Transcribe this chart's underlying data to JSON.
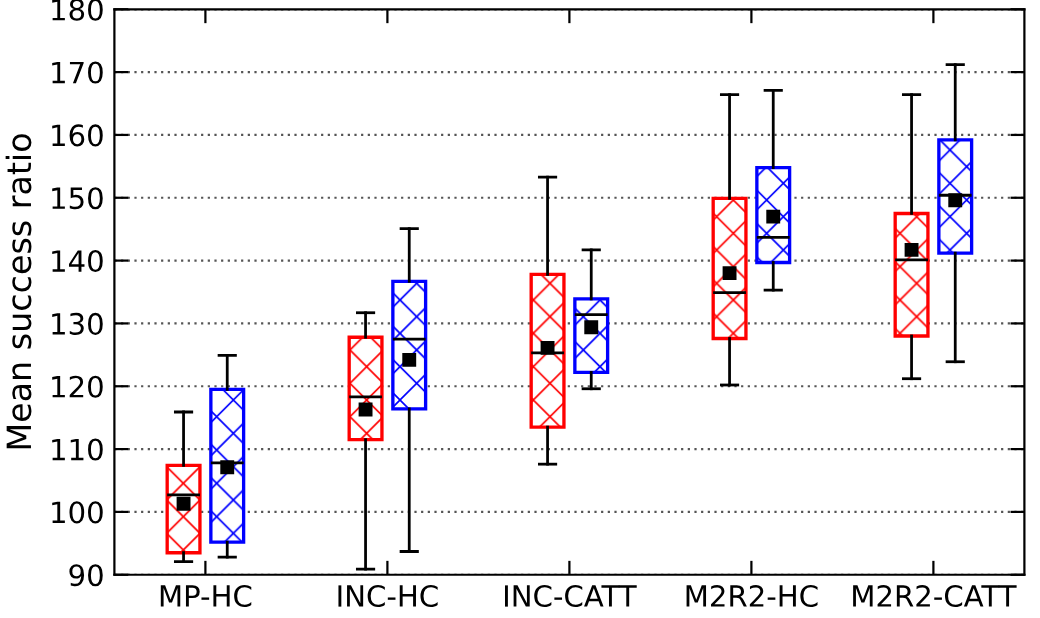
{
  "chart_data": {
    "type": "box",
    "ylabel": "Mean success ratio",
    "categories": [
      "MP-HC",
      "INC-HC",
      "INC-CATT",
      "M2R2-HC",
      "M2R2-CATT"
    ],
    "ylim": [
      90,
      180
    ],
    "yticks": [
      90,
      100,
      110,
      120,
      130,
      140,
      150,
      160,
      170,
      180
    ],
    "grid": "y",
    "series": [
      {
        "color": "#ff0000",
        "boxes": [
          {
            "low": 92.1,
            "q1": 93.5,
            "median": 102.7,
            "q3": 107.4,
            "high": 115.9,
            "mean": 101.3
          },
          {
            "low": 90.9,
            "q1": 111.5,
            "median": 118.3,
            "q3": 127.8,
            "high": 131.7,
            "mean": 116.3
          },
          {
            "low": 107.6,
            "q1": 113.5,
            "median": 125.3,
            "q3": 137.8,
            "high": 153.3,
            "mean": 126.1
          },
          {
            "low": 120.2,
            "q1": 127.6,
            "median": 134.9,
            "q3": 149.9,
            "high": 166.4,
            "mean": 138.0
          },
          {
            "low": 121.2,
            "q1": 128.0,
            "median": 140.1,
            "q3": 147.5,
            "high": 166.4,
            "mean": 141.7
          }
        ]
      },
      {
        "color": "#0000ff",
        "boxes": [
          {
            "low": 92.8,
            "q1": 95.2,
            "median": 107.8,
            "q3": 119.5,
            "high": 124.9,
            "mean": 107.1
          },
          {
            "low": 93.7,
            "q1": 116.4,
            "median": 127.5,
            "q3": 136.7,
            "high": 145.1,
            "mean": 124.2
          },
          {
            "low": 119.6,
            "q1": 122.2,
            "median": 131.4,
            "q3": 133.9,
            "high": 141.7,
            "mean": 129.4
          },
          {
            "low": 135.3,
            "q1": 139.7,
            "median": 143.7,
            "q3": 154.8,
            "high": 167.1,
            "mean": 147.0
          },
          {
            "low": 123.9,
            "q1": 141.2,
            "median": 150.4,
            "q3": 159.2,
            "high": 171.2,
            "mean": 149.6
          }
        ]
      }
    ]
  }
}
